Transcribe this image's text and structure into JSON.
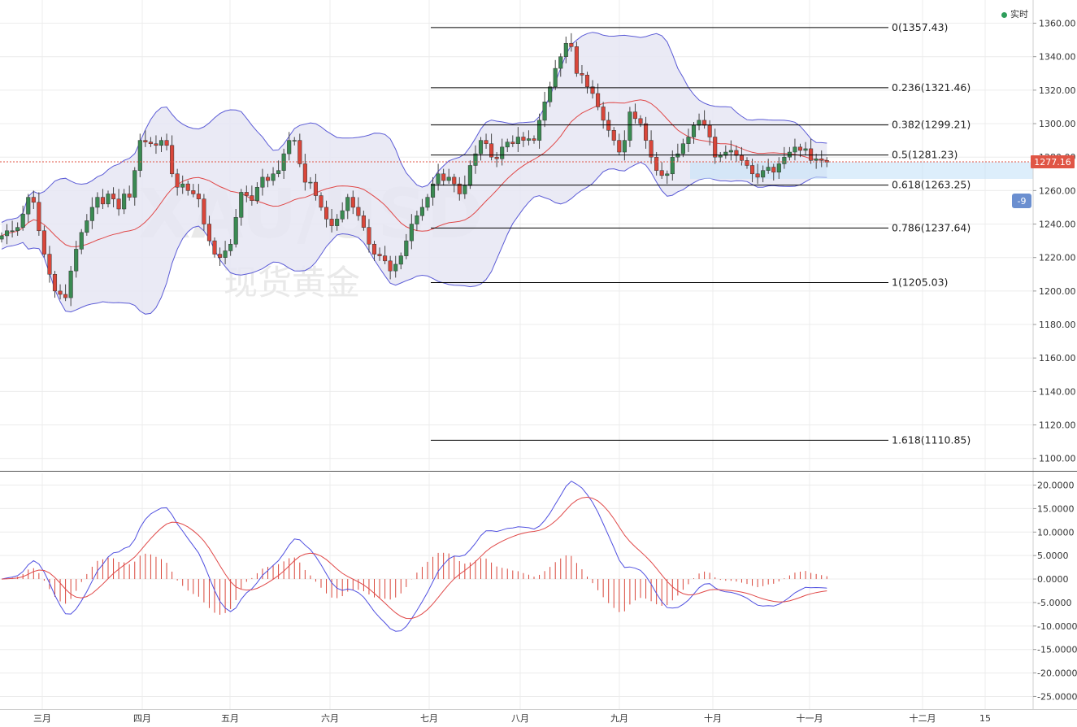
{
  "status": {
    "label": "实时"
  },
  "watermark": {
    "symbol": "XAU/USD",
    "name": "现货黄金"
  },
  "colors": {
    "up": "#3a8a52",
    "down": "#d9463a",
    "band": "#5b5bd6",
    "mid": "#e04848",
    "bandFill": "#e6e6f3",
    "macd": "#5050e0",
    "signal": "#e04848",
    "hist": "#d9463a",
    "priceTag": "#e05545",
    "fib": "#000000",
    "zone": "#c7e2f8"
  },
  "chart_data": [
    {
      "type": "candlestick",
      "title": "",
      "indicators": [
        "Bollinger Bands",
        "Fibonacci retracement"
      ],
      "x_labels": [
        "三月",
        "四月",
        "五月",
        "六月",
        "七月",
        "八月",
        "九月",
        "十月",
        "十一月",
        "十二月",
        "15"
      ],
      "y_ticks": [
        1100,
        1120,
        1140,
        1160,
        1180,
        1200,
        1220,
        1240,
        1260,
        1280,
        1300,
        1320,
        1340,
        1360
      ],
      "ylim": [
        1095,
        1369
      ],
      "last_price": "1277.16",
      "side_badge": "-9",
      "closes": [
        1233,
        1236,
        1236,
        1238,
        1246,
        1256,
        1253,
        1236,
        1222,
        1210,
        1200,
        1198,
        1196,
        1212,
        1225,
        1235,
        1242,
        1250,
        1256,
        1252,
        1258,
        1255,
        1249,
        1258,
        1256,
        1272,
        1290,
        1289,
        1288,
        1287,
        1290,
        1287,
        1270,
        1262,
        1264,
        1260,
        1258,
        1255,
        1240,
        1230,
        1222,
        1220,
        1224,
        1228,
        1244,
        1259,
        1257,
        1254,
        1262,
        1268,
        1266,
        1270,
        1272,
        1282,
        1290,
        1290,
        1276,
        1265,
        1265,
        1257,
        1250,
        1243,
        1239,
        1243,
        1248,
        1256,
        1250,
        1245,
        1238,
        1228,
        1222,
        1221,
        1218,
        1212,
        1216,
        1221,
        1230,
        1240,
        1245,
        1250,
        1256,
        1264,
        1270,
        1266,
        1268,
        1264,
        1258,
        1263,
        1275,
        1282,
        1290,
        1288,
        1280,
        1279,
        1286,
        1289,
        1288,
        1292,
        1290,
        1291,
        1290,
        1302,
        1313,
        1322,
        1333,
        1340,
        1348,
        1346,
        1330,
        1329,
        1322,
        1318,
        1310,
        1302,
        1296,
        1290,
        1283,
        1290,
        1307,
        1303,
        1300,
        1290,
        1280,
        1272,
        1269,
        1270,
        1280,
        1282,
        1288,
        1292,
        1299,
        1302,
        1299,
        1292,
        1280,
        1281,
        1283,
        1284,
        1281,
        1278,
        1275,
        1270,
        1268,
        1272,
        1274,
        1271,
        1276,
        1280,
        1283,
        1286,
        1284,
        1285,
        1278,
        1279,
        1278,
        1277
      ],
      "fib_levels": [
        {
          "ratio": "0",
          "price": 1357.43,
          "label": "0(1357.43)"
        },
        {
          "ratio": "0.236",
          "price": 1321.46,
          "label": "0.236(1321.46)"
        },
        {
          "ratio": "0.382",
          "price": 1299.21,
          "label": "0.382(1299.21)"
        },
        {
          "ratio": "0.5",
          "price": 1281.23,
          "label": "0.5(1281.23)"
        },
        {
          "ratio": "0.618",
          "price": 1263.25,
          "label": "0.618(1263.25)"
        },
        {
          "ratio": "0.786",
          "price": 1237.64,
          "label": "0.786(1237.64)"
        },
        {
          "ratio": "1",
          "price": 1205.03,
          "label": "1(1205.03)"
        },
        {
          "ratio": "1.618",
          "price": 1110.85,
          "label": "1.618(1110.85)"
        }
      ],
      "zone": {
        "from": 1267,
        "to": 1277
      }
    },
    {
      "type": "macd",
      "y_ticks": [
        "20.0000",
        "15.0000",
        "10.0000",
        "5.0000",
        "0.0000",
        "-5.0000",
        "-10.0000",
        "-15.0000",
        "-20.0000",
        "-25.0000"
      ],
      "ylim": [
        -27,
        22
      ]
    }
  ]
}
